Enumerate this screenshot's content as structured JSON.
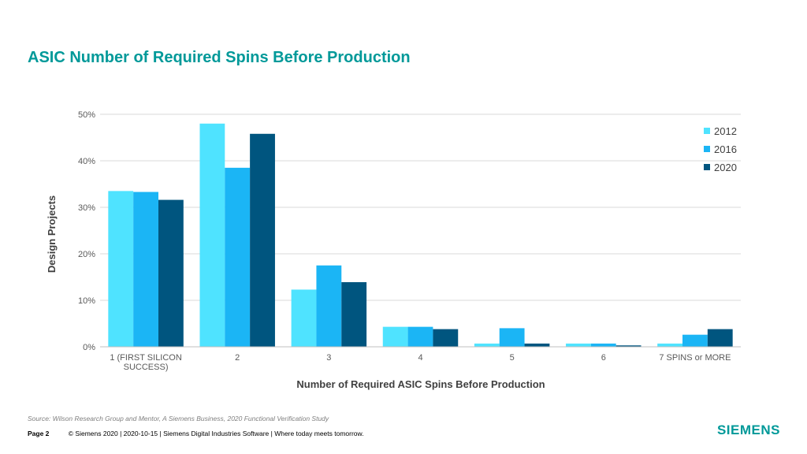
{
  "slide": {
    "title": "ASIC Number of Required Spins Before Production",
    "source": "Source:  Wilson Research Group and Mentor,  A Siemens Business, 2020 Functional Verification Study",
    "page_label": "Page 2",
    "footer_text": "© Siemens 2020 | 2020-10-15 | Siemens Digital Industries Software | Where today meets tomorrow.",
    "logo_text": "SIEMENS",
    "brand_color": "#009999"
  },
  "chart_data": {
    "type": "bar",
    "title": "",
    "xlabel": "Number of Required ASIC Spins Before Production",
    "ylabel": "Design Projects",
    "ylim": [
      0,
      50
    ],
    "y_ticks": [
      0,
      10,
      20,
      30,
      40,
      50
    ],
    "y_tick_labels": [
      "0%",
      "10%",
      "20%",
      "30%",
      "40%",
      "50%"
    ],
    "grid": true,
    "legend_position": "top-right",
    "categories": [
      [
        "1 (FIRST SILICON",
        "SUCCESS)"
      ],
      [
        "2"
      ],
      [
        "3"
      ],
      [
        "4"
      ],
      [
        "5"
      ],
      [
        "6"
      ],
      [
        "7 SPINS or MORE"
      ]
    ],
    "series": [
      {
        "name": "2012",
        "color": "#4fe3ff",
        "values": [
          33.5,
          48.0,
          12.3,
          4.3,
          0.7,
          0.7,
          0.7
        ]
      },
      {
        "name": "2016",
        "color": "#1bb5f5",
        "values": [
          33.3,
          38.5,
          17.5,
          4.3,
          4.0,
          0.7,
          2.6
        ]
      },
      {
        "name": "2020",
        "color": "#00557f",
        "values": [
          31.6,
          45.8,
          13.9,
          3.8,
          0.7,
          0.3,
          3.8
        ]
      }
    ]
  }
}
